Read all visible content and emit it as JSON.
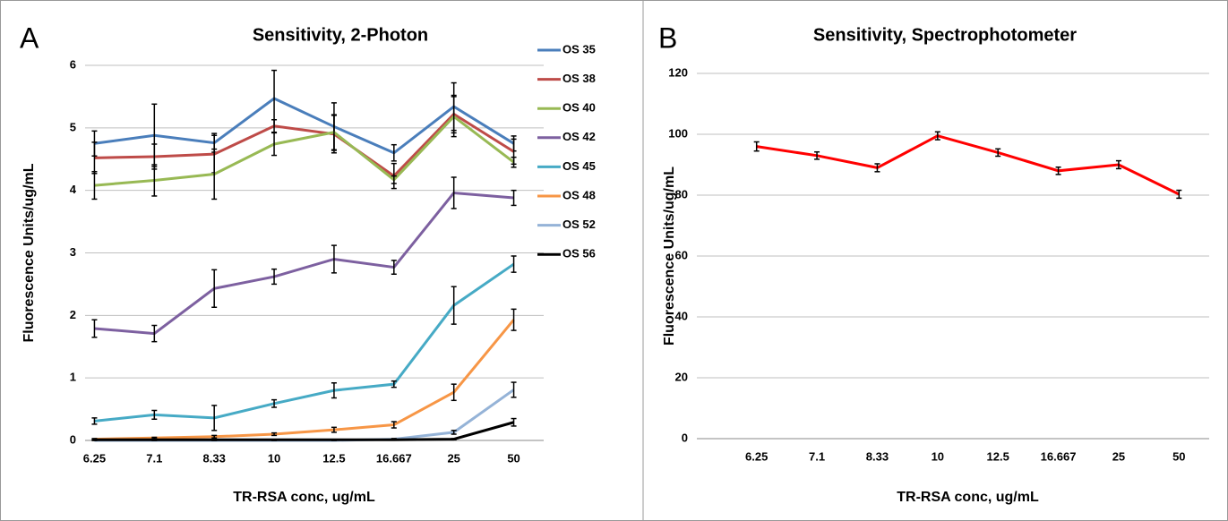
{
  "chart_data": [
    {
      "type": "line",
      "panel": "A",
      "title": "Sensitivity, 2-Photon",
      "xlabel": "TR-RSA conc, ug/mL",
      "ylabel": "Fluorescence Units/ug/mL",
      "categories": [
        "6.25",
        "7.1",
        "8.33",
        "10",
        "12.5",
        "16.667",
        "25",
        "50"
      ],
      "ylim": [
        0,
        6
      ],
      "yticks": [
        0,
        1,
        2,
        3,
        4,
        5,
        6
      ],
      "grid": true,
      "legend": "right",
      "series": [
        {
          "name": "OS 35",
          "color": "#4a7ebb",
          "values": [
            4.75,
            4.88,
            4.76,
            5.47,
            5.02,
            4.6,
            5.34,
            4.75
          ],
          "errors": [
            0.2,
            0.5,
            0.15,
            0.45,
            0.38,
            0.13,
            0.38,
            0.12
          ]
        },
        {
          "name": "OS 38",
          "color": "#be4b48",
          "values": [
            4.52,
            4.54,
            4.58,
            5.03,
            4.9,
            4.23,
            5.22,
            4.62
          ],
          "errors": [
            0.25,
            0.2,
            0.3,
            0.1,
            0.3,
            0.2,
            0.3,
            0.2
          ]
        },
        {
          "name": "OS 40",
          "color": "#98b954",
          "values": [
            4.08,
            4.16,
            4.26,
            4.74,
            4.93,
            4.17,
            5.18,
            4.45
          ],
          "errors": [
            0.22,
            0.25,
            0.4,
            0.18,
            0.28,
            0.06,
            0.32,
            0.08
          ]
        },
        {
          "name": "OS 42",
          "color": "#7d60a0",
          "values": [
            1.79,
            1.71,
            2.43,
            2.62,
            2.9,
            2.77,
            3.96,
            3.88
          ],
          "errors": [
            0.14,
            0.13,
            0.3,
            0.12,
            0.22,
            0.11,
            0.25,
            0.12
          ]
        },
        {
          "name": "OS 45",
          "color": "#46aac5",
          "values": [
            0.31,
            0.41,
            0.36,
            0.59,
            0.8,
            0.9,
            2.16,
            2.82
          ],
          "errors": [
            0.05,
            0.07,
            0.2,
            0.06,
            0.12,
            0.05,
            0.3,
            0.13
          ]
        },
        {
          "name": "OS 48",
          "color": "#f79646",
          "values": [
            0.02,
            0.04,
            0.06,
            0.1,
            0.17,
            0.25,
            0.77,
            1.93
          ],
          "errors": [
            0.01,
            0.01,
            0.02,
            0.02,
            0.04,
            0.05,
            0.13,
            0.17
          ]
        },
        {
          "name": "OS 52",
          "color": "#95b3d7",
          "values": [
            0,
            0,
            0,
            0,
            0,
            0.02,
            0.13,
            0.81
          ],
          "errors": [
            0,
            0,
            0,
            0,
            0,
            0.01,
            0.03,
            0.12
          ]
        },
        {
          "name": "OS 56",
          "color": "#000000",
          "values": [
            0.01,
            0.01,
            0.01,
            0.01,
            0.01,
            0.01,
            0.02,
            0.29
          ],
          "errors": [
            0,
            0,
            0,
            0,
            0,
            0,
            0.01,
            0.06
          ]
        }
      ]
    },
    {
      "type": "line",
      "panel": "B",
      "title": "Sensitivity, Spectrophotometer",
      "xlabel": "TR-RSA conc, ug/mL",
      "ylabel": "Fluorescence Units/ug/mL",
      "categories": [
        "6.25",
        "7.1",
        "8.33",
        "10",
        "12.5",
        "16.667",
        "25",
        "50"
      ],
      "ylim": [
        0,
        120
      ],
      "yticks": [
        0,
        20,
        40,
        60,
        80,
        100,
        120
      ],
      "grid": true,
      "series": [
        {
          "color": "#ff0000",
          "values": [
            96,
            93,
            89,
            99.5,
            94,
            88,
            90,
            80.3
          ],
          "errors": [
            1.5,
            1.2,
            1.3,
            1.3,
            1.2,
            1.2,
            1.3,
            1.3
          ]
        }
      ]
    }
  ]
}
